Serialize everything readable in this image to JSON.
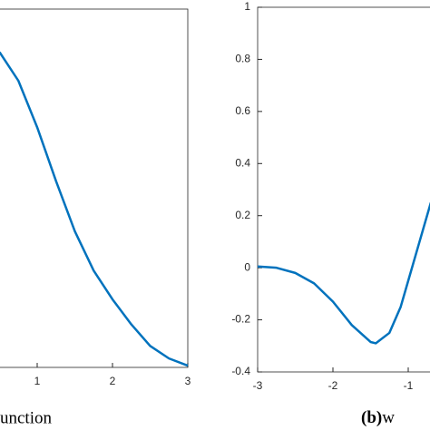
{
  "chart_data": [
    {
      "type": "line",
      "x": [
        0.5,
        0.75,
        1,
        1.25,
        1.5,
        1.75,
        2,
        2.25,
        2.5,
        2.75,
        3
      ],
      "series": [
        {
          "color": "#0072bd",
          "values": [
            0.88,
            0.8,
            0.67,
            0.52,
            0.38,
            0.27,
            0.19,
            0.12,
            0.06,
            0.025,
            0.005
          ]
        }
      ],
      "xlim": [
        0,
        3
      ],
      "xticks": [
        1,
        2,
        3
      ],
      "ylim": [
        0,
        1
      ]
    },
    {
      "type": "line",
      "x": [
        -3,
        -2.75,
        -2.5,
        -2.25,
        -2,
        -1.75,
        -1.5,
        -1.43,
        -1.25,
        -1.1,
        -1,
        -0.85,
        -0.7
      ],
      "series": [
        {
          "color": "#0072bd",
          "values": [
            0.005,
            0.0,
            -0.02,
            -0.06,
            -0.13,
            -0.22,
            -0.285,
            -0.29,
            -0.25,
            -0.15,
            -0.05,
            0.1,
            0.25
          ]
        }
      ],
      "xlim": [
        -3,
        3
      ],
      "xticks": [
        -3,
        -2,
        -1
      ],
      "ylim": [
        -0.4,
        1
      ],
      "yticks": [
        -0.4,
        -0.2,
        0,
        0.2,
        0.4,
        0.6,
        0.8,
        1
      ]
    }
  ],
  "captions": [
    {
      "text": "unction"
    },
    {
      "bold": "(b)",
      "text": "w"
    }
  ]
}
